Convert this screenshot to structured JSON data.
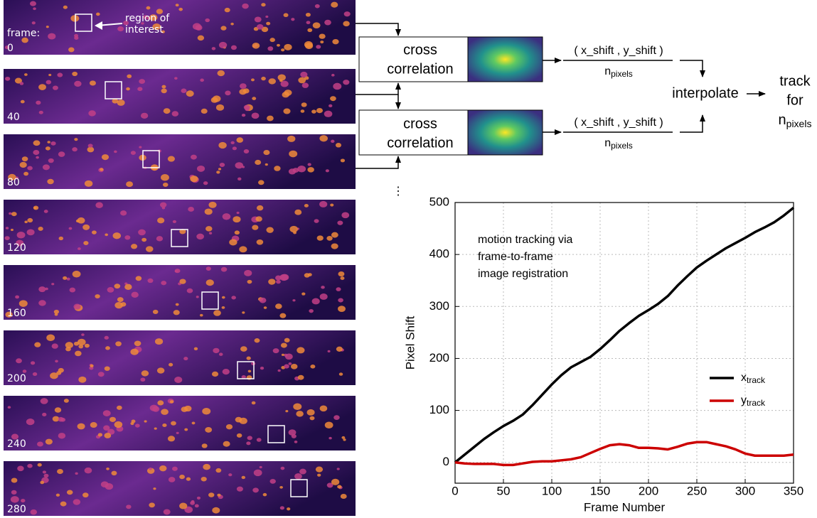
{
  "frames": {
    "heading": "frame:",
    "labels": [
      "0",
      "40",
      "80",
      "120",
      "160",
      "200",
      "240",
      "280"
    ],
    "roi_label": [
      "region of",
      "interest"
    ]
  },
  "diagram": {
    "boxes": [
      [
        "cross",
        "correlation"
      ],
      [
        "cross",
        "correlation"
      ]
    ],
    "fractions": [
      {
        "numerator": "( x_shift , y_shift )",
        "denominator": {
          "base": "n",
          "sub": "pixels"
        }
      },
      {
        "numerator": "( x_shift , y_shift )",
        "denominator": {
          "base": "n",
          "sub": "pixels"
        }
      }
    ],
    "interpolate": "interpolate",
    "output": [
      "track",
      "for",
      {
        "base": "n",
        "sub": "pixels"
      }
    ],
    "ellipsis": "⋮"
  },
  "chart_data": {
    "type": "line",
    "annotation": [
      "motion tracking via",
      "frame-to-frame",
      "image registration"
    ],
    "x_label": "Frame Number",
    "y_label": "Pixel Shift",
    "x": [
      0,
      10,
      20,
      30,
      40,
      50,
      60,
      70,
      80,
      90,
      100,
      110,
      120,
      130,
      140,
      150,
      160,
      170,
      180,
      190,
      200,
      210,
      220,
      230,
      240,
      250,
      260,
      270,
      280,
      290,
      300,
      310,
      320,
      330,
      340,
      350
    ],
    "series": [
      {
        "name": "x",
        "subscript": "track",
        "color": "#000000",
        "values": [
          0,
          15,
          30,
          45,
          58,
          70,
          80,
          92,
          110,
          130,
          150,
          168,
          183,
          193,
          203,
          218,
          235,
          253,
          268,
          282,
          293,
          305,
          320,
          340,
          358,
          375,
          388,
          400,
          412,
          422,
          432,
          443,
          452,
          462,
          475,
          490
        ]
      },
      {
        "name": "y",
        "subscript": "track",
        "color": "#cc0000",
        "values": [
          0,
          -2,
          -3,
          -3,
          -3,
          -5,
          -5,
          -2,
          1,
          2,
          2,
          4,
          6,
          10,
          18,
          26,
          33,
          35,
          33,
          28,
          28,
          27,
          25,
          30,
          36,
          39,
          39,
          35,
          31,
          25,
          17,
          13,
          13,
          13,
          13,
          15
        ]
      }
    ],
    "xlim": [
      0,
      350
    ],
    "xticks": [
      0,
      50,
      100,
      150,
      200,
      250,
      300,
      350
    ],
    "ylim": [
      -40,
      500
    ],
    "yticks": [
      0,
      100,
      200,
      300,
      400,
      500
    ],
    "grid": true,
    "legend": "lower right"
  }
}
